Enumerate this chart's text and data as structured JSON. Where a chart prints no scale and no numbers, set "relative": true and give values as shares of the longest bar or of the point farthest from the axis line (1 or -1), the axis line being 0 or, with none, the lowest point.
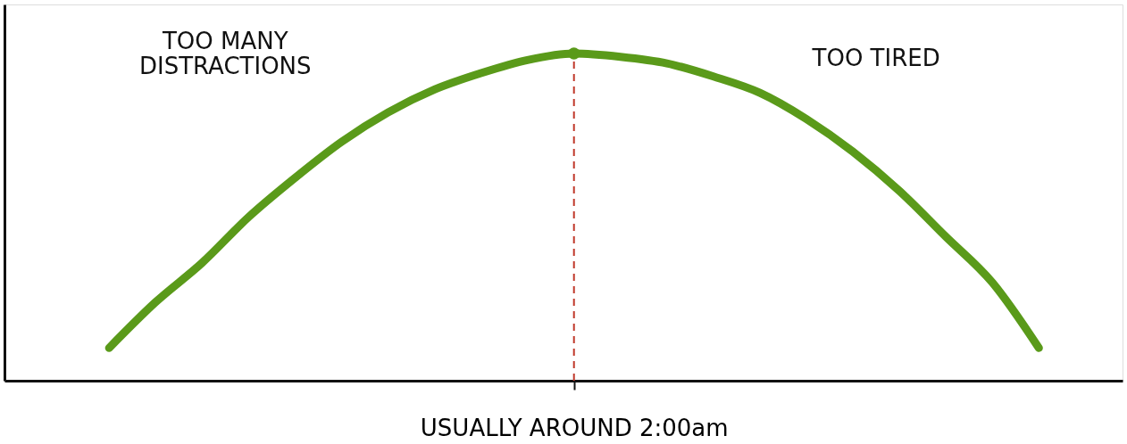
{
  "chart_data": {
    "type": "line",
    "relative": true,
    "categories": [
      null,
      null,
      null,
      null,
      null,
      null,
      null,
      null,
      null,
      null,
      null,
      null,
      null,
      null,
      null,
      null,
      null,
      null,
      null,
      null,
      null
    ],
    "series": [
      {
        "color": "#5a9a1a",
        "values": [
          0.1,
          0.24,
          0.36,
          0.5,
          0.62,
          0.73,
          0.82,
          0.89,
          0.94,
          0.98,
          1.0,
          0.99,
          0.97,
          0.93,
          0.88,
          0.8,
          0.7,
          0.58,
          0.44,
          0.3,
          0.1
        ]
      }
    ],
    "xlabel": "USUALLY AROUND 2:00am",
    "ref_lines": [
      {
        "axis": "x",
        "color": "#c0392b",
        "line_style": "dashed"
      }
    ],
    "annotations": [
      "TOO MANY\nDISTRACTIONS",
      "TOO TIRED"
    ],
    "tick_labels": "x",
    "grid": false,
    "marker": "none",
    "line_style": "solid"
  }
}
